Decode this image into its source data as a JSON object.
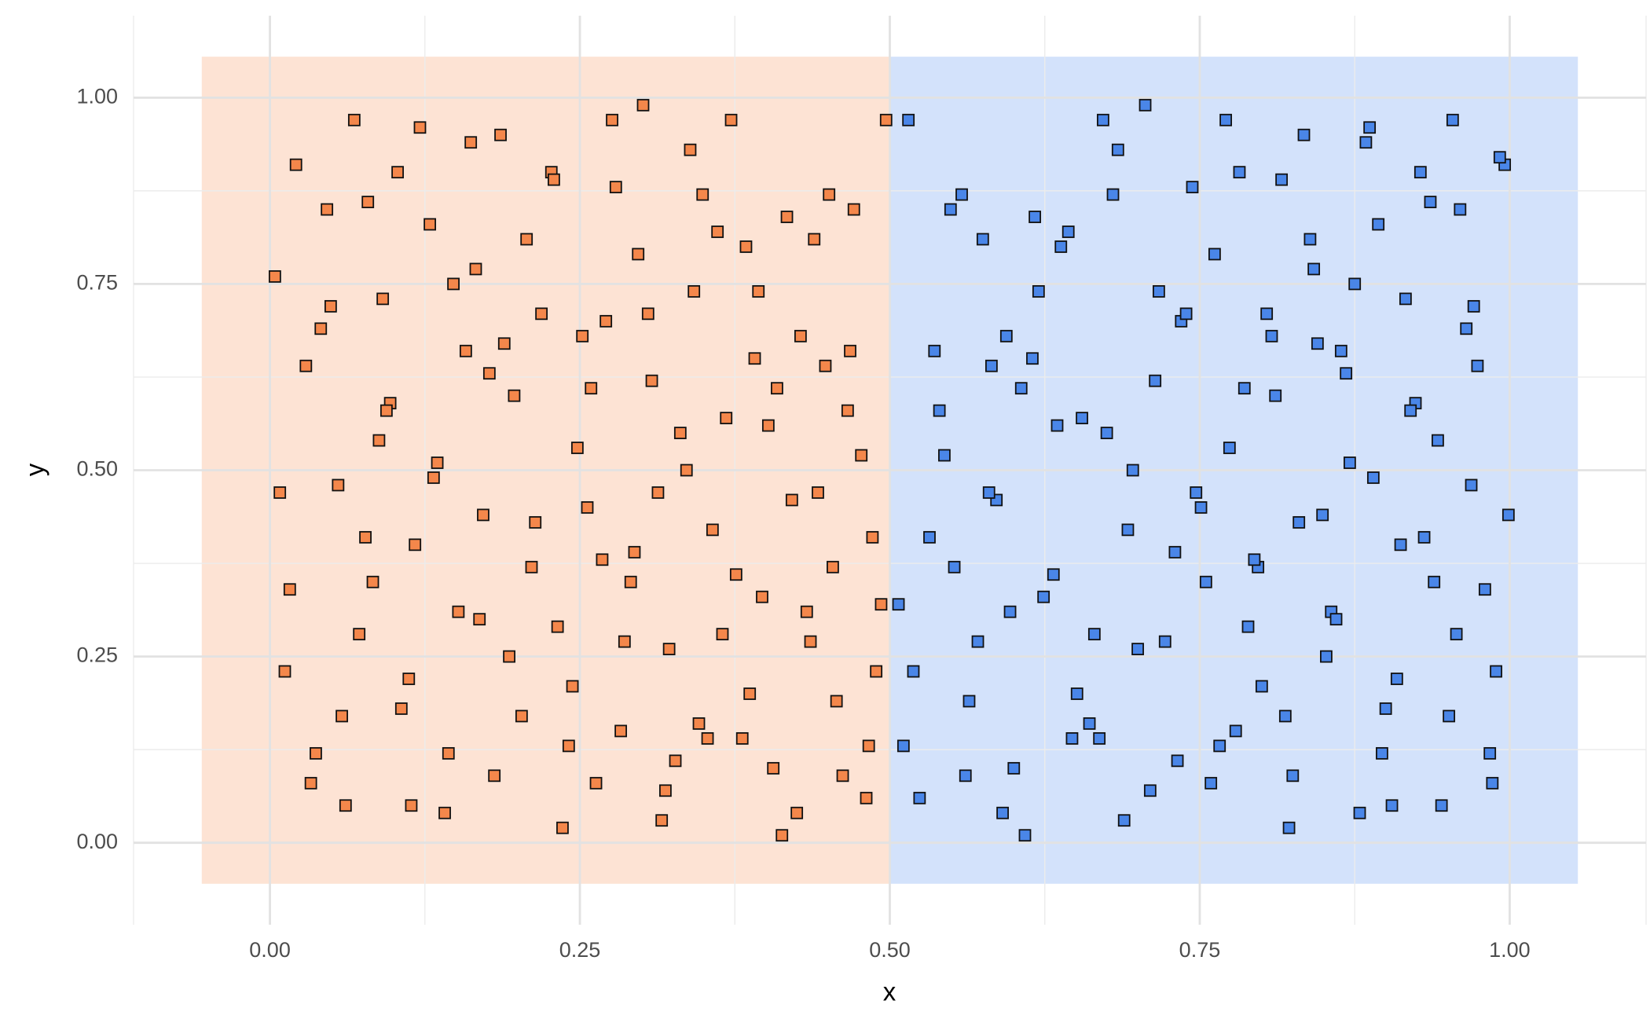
{
  "chart_data": {
    "type": "scatter",
    "x_label": "x",
    "y_label": "y",
    "xlim": [
      -0.11,
      1.11
    ],
    "ylim": [
      -0.11,
      1.11
    ],
    "xticks": [
      {
        "value": 0,
        "label": "0.00"
      },
      0.25,
      {
        "value": 0.5,
        "label": "0.50"
      },
      0.75,
      {
        "value": 1,
        "label": "1.00"
      }
    ],
    "yticks": [
      {
        "value": 0,
        "label": "0.00"
      },
      0.25,
      {
        "value": 0.5,
        "label": "0.50"
      },
      0.75,
      {
        "value": 1,
        "label": "1.00"
      }
    ],
    "x_minor_ticks": [
      -0.125,
      0.125,
      0.375,
      0.625,
      0.875,
      1.125
    ],
    "y_minor_ticks": [
      0.125,
      0.375,
      0.625,
      0.875
    ],
    "grid": true,
    "regions": [
      {
        "color": "#fde3d4",
        "xlim": [
          -0.055,
          0.5
        ],
        "ylim": [
          -0.055,
          1.055
        ]
      },
      {
        "color": "#d3e2fb",
        "xlim": [
          0.5,
          1.055
        ],
        "ylim": [
          -0.055,
          1.055
        ]
      }
    ],
    "marker": "square",
    "series": [
      {
        "color": "#f4874b",
        "x": [
          0.004,
          0.021,
          0.037,
          0.055,
          0.068,
          0.083,
          0.097,
          0.112,
          0.129,
          0.141,
          0.158,
          0.172,
          0.186,
          0.203,
          0.219,
          0.232,
          0.248,
          0.263,
          0.279,
          0.294,
          0.308,
          0.322,
          0.339,
          0.353,
          0.368,
          0.384,
          0.397,
          0.413,
          0.428,
          0.442,
          0.457,
          0.471,
          0.486,
          0.497,
          0.012,
          0.029,
          0.046,
          0.061,
          0.077,
          0.091,
          0.106,
          0.121,
          0.135,
          0.152,
          0.166,
          0.181,
          0.197,
          0.211,
          0.227,
          0.241,
          0.256,
          0.271,
          0.286,
          0.301,
          0.316,
          0.331,
          0.346,
          0.361,
          0.376,
          0.391,
          0.406,
          0.421,
          0.436,
          0.451,
          0.466,
          0.481,
          0.493,
          0.008,
          0.033,
          0.049,
          0.072,
          0.088,
          0.103,
          0.117,
          0.144,
          0.162,
          0.177,
          0.193,
          0.207,
          0.236,
          0.252,
          0.268,
          0.283,
          0.297,
          0.313,
          0.327,
          0.342,
          0.357,
          0.372,
          0.387,
          0.402,
          0.417,
          0.433,
          0.448,
          0.462,
          0.477,
          0.489,
          0.016,
          0.041,
          0.058,
          0.079,
          0.094,
          0.114,
          0.132,
          0.148,
          0.169,
          0.189,
          0.214,
          0.229,
          0.244,
          0.259,
          0.276,
          0.291,
          0.305,
          0.319,
          0.336,
          0.349,
          0.365,
          0.381,
          0.394,
          0.409,
          0.425,
          0.439,
          0.454,
          0.468,
          0.483
        ],
        "values": [
          0.76,
          0.91,
          0.12,
          0.48,
          0.97,
          0.35,
          0.59,
          0.22,
          0.83,
          0.04,
          0.66,
          0.44,
          0.95,
          0.17,
          0.71,
          0.29,
          0.53,
          0.08,
          0.88,
          0.39,
          0.62,
          0.26,
          0.93,
          0.14,
          0.57,
          0.8,
          0.33,
          0.01,
          0.68,
          0.47,
          0.19,
          0.85,
          0.41,
          0.97,
          0.23,
          0.64,
          0.85,
          0.05,
          0.41,
          0.73,
          0.18,
          0.96,
          0.51,
          0.31,
          0.77,
          0.09,
          0.6,
          0.37,
          0.9,
          0.13,
          0.45,
          0.7,
          0.27,
          0.99,
          0.03,
          0.55,
          0.16,
          0.82,
          0.36,
          0.65,
          0.1,
          0.46,
          0.27,
          0.87,
          0.58,
          0.06,
          0.32,
          0.47,
          0.08,
          0.72,
          0.28,
          0.54,
          0.9,
          0.4,
          0.12,
          0.94,
          0.63,
          0.25,
          0.81,
          0.02,
          0.68,
          0.38,
          0.15,
          0.79,
          0.47,
          0.11,
          0.74,
          0.42,
          0.97,
          0.2,
          0.56,
          0.84,
          0.31,
          0.64,
          0.09,
          0.52,
          0.23,
          0.34,
          0.69,
          0.17,
          0.86,
          0.58,
          0.05,
          0.49,
          0.75,
          0.3,
          0.67,
          0.43,
          0.89,
          0.21,
          0.61,
          0.97,
          0.35,
          0.71,
          0.07,
          0.5,
          0.87,
          0.28,
          0.14,
          0.74,
          0.61,
          0.04,
          0.81,
          0.37,
          0.66,
          0.13
        ]
      },
      {
        "color": "#4a86e8",
        "x": [
          0.507,
          0.524,
          0.54,
          0.558,
          0.571,
          0.586,
          0.6,
          0.615,
          0.632,
          0.644,
          0.661,
          0.675,
          0.689,
          0.706,
          0.722,
          0.735,
          0.751,
          0.766,
          0.782,
          0.797,
          0.811,
          0.825,
          0.842,
          0.856,
          0.871,
          0.887,
          0.9,
          0.916,
          0.931,
          0.945,
          0.96,
          0.974,
          0.989,
          0.999,
          0.515,
          0.532,
          0.549,
          0.564,
          0.58,
          0.594,
          0.609,
          0.624,
          0.638,
          0.655,
          0.669,
          0.684,
          0.7,
          0.714,
          0.73,
          0.744,
          0.759,
          0.774,
          0.789,
          0.804,
          0.819,
          0.834,
          0.849,
          0.864,
          0.879,
          0.894,
          0.909,
          0.924,
          0.939,
          0.954,
          0.969,
          0.984,
          0.996,
          0.511,
          0.536,
          0.552,
          0.575,
          0.591,
          0.606,
          0.62,
          0.647,
          0.665,
          0.68,
          0.696,
          0.71,
          0.739,
          0.755,
          0.771,
          0.786,
          0.8,
          0.816,
          0.83,
          0.845,
          0.86,
          0.875,
          0.89,
          0.905,
          0.92,
          0.936,
          0.951,
          0.965,
          0.98,
          0.992,
          0.519,
          0.544,
          0.561,
          0.582,
          0.597,
          0.617,
          0.635,
          0.651,
          0.672,
          0.692,
          0.717,
          0.732,
          0.747,
          0.762,
          0.779,
          0.794,
          0.808,
          0.822,
          0.839,
          0.852,
          0.868,
          0.884,
          0.897,
          0.912,
          0.928,
          0.942,
          0.957,
          0.971,
          0.986
        ],
        "values": [
          0.32,
          0.06,
          0.58,
          0.87,
          0.27,
          0.46,
          0.1,
          0.65,
          0.36,
          0.82,
          0.16,
          0.55,
          0.03,
          0.99,
          0.27,
          0.7,
          0.45,
          0.13,
          0.9,
          0.37,
          0.6,
          0.09,
          0.77,
          0.31,
          0.51,
          0.96,
          0.18,
          0.73,
          0.41,
          0.05,
          0.85,
          0.64,
          0.23,
          0.44,
          0.97,
          0.41,
          0.85,
          0.19,
          0.47,
          0.68,
          0.01,
          0.33,
          0.8,
          0.57,
          0.14,
          0.93,
          0.26,
          0.62,
          0.39,
          0.88,
          0.08,
          0.53,
          0.29,
          0.71,
          0.17,
          0.95,
          0.44,
          0.66,
          0.04,
          0.83,
          0.22,
          0.59,
          0.35,
          0.97,
          0.48,
          0.12,
          0.91,
          0.13,
          0.66,
          0.37,
          0.81,
          0.04,
          0.61,
          0.74,
          0.14,
          0.28,
          0.87,
          0.5,
          0.07,
          0.71,
          0.35,
          0.97,
          0.61,
          0.21,
          0.89,
          0.43,
          0.67,
          0.3,
          0.75,
          0.49,
          0.05,
          0.58,
          0.86,
          0.17,
          0.69,
          0.34,
          0.92,
          0.23,
          0.52,
          0.09,
          0.64,
          0.31,
          0.84,
          0.56,
          0.2,
          0.97,
          0.42,
          0.74,
          0.11,
          0.47,
          0.79,
          0.15,
          0.38,
          0.68,
          0.02,
          0.81,
          0.25,
          0.63,
          0.94,
          0.12,
          0.4,
          0.9,
          0.54,
          0.28,
          0.72,
          0.08
        ]
      }
    ]
  }
}
